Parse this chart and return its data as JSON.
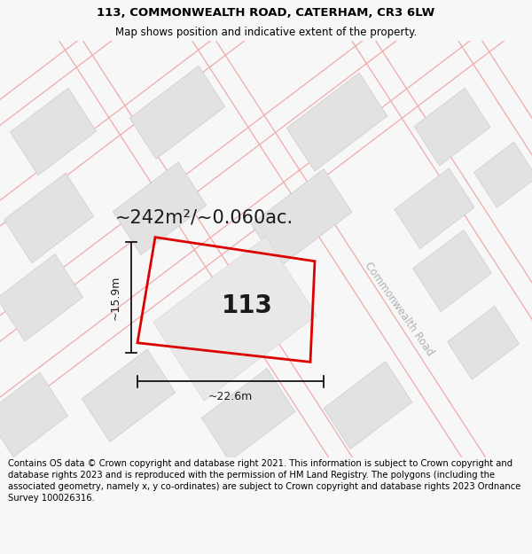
{
  "title": "113, COMMONWEALTH ROAD, CATERHAM, CR3 6LW",
  "subtitle": "Map shows position and indicative extent of the property.",
  "footer": "Contains OS data © Crown copyright and database right 2021. This information is subject to Crown copyright and database rights 2023 and is reproduced with the permission of HM Land Registry. The polygons (including the associated geometry, namely x, y co-ordinates) are subject to Crown copyright and database rights 2023 Ordnance Survey 100026316.",
  "area_label": "~242m²/~0.060ac.",
  "house_number": "113",
  "dim_width": "~22.6m",
  "dim_height": "~15.9m",
  "road_label": "Commonwealth Road",
  "bg_color": "#f7f7f7",
  "map_bg": "#ffffff",
  "building_fill": "#e2e2e2",
  "building_edge": "#cccccc",
  "plot_outline_color": "#dd0000",
  "road_line_color": "#f0aaaa",
  "title_fontsize": 9.5,
  "subtitle_fontsize": 8.5,
  "footer_fontsize": 7.2,
  "area_fontsize": 15,
  "number_fontsize": 20,
  "dim_fontsize": 9
}
